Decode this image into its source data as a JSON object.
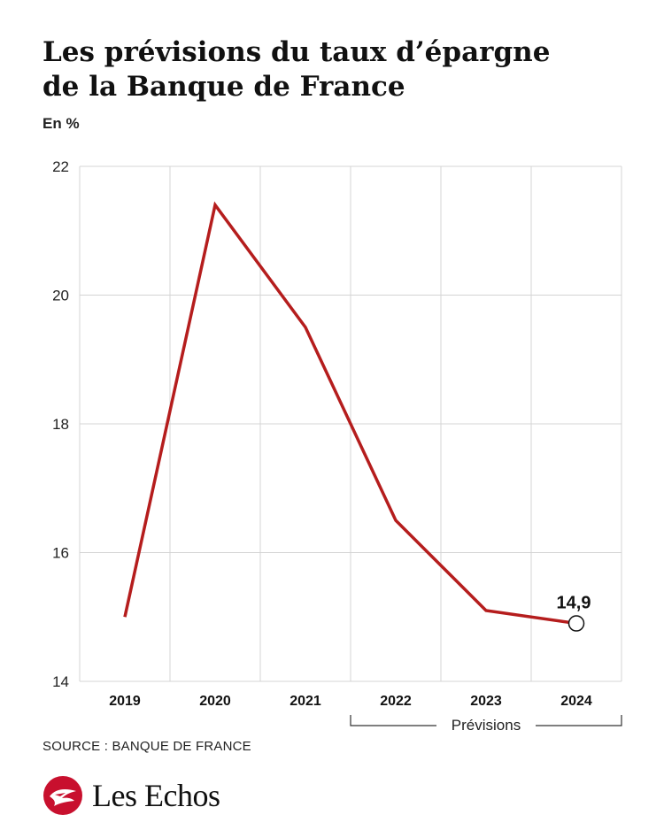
{
  "title_line1": "Les prévisions du taux d’épargne",
  "title_line2": "de la Banque de France",
  "unit": "En %",
  "source": "SOURCE : BANQUE DE FRANCE",
  "brand": {
    "name": "Les Echos",
    "color": "#c8102e"
  },
  "chart_data": {
    "type": "line",
    "x": [
      "2019",
      "2020",
      "2021",
      "2022",
      "2023",
      "2024"
    ],
    "series": [
      {
        "values": [
          15.0,
          21.4,
          19.5,
          16.5,
          15.1,
          14.9
        ],
        "color": "#b51d1d"
      }
    ],
    "ylim": [
      14,
      22
    ],
    "yticks": [
      "14",
      "16",
      "18",
      "20",
      "22"
    ],
    "grid": true,
    "annotations": [
      {
        "x": "2024",
        "label": "14,9"
      }
    ],
    "bracket": {
      "label": "Prévisions",
      "from": "2022",
      "to": "2024"
    }
  }
}
